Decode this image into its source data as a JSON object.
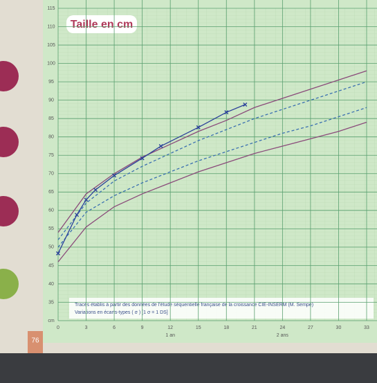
{
  "chart_data": {
    "type": "line",
    "title": "Taille en cm",
    "annotations": [
      "Tracés établis à partir des données de l'étude séquentielle française de la croissance CIE-INSERM (M. Sempé)",
      "Variations en écarts-types ( σ ) [1 σ = 1 DS]"
    ],
    "x_unit_labels": [
      {
        "value": 12,
        "label": "1 an"
      },
      {
        "value": 24,
        "label": "2 ans"
      }
    ],
    "page_number": "76",
    "x": [
      0,
      3,
      6,
      9,
      12,
      15,
      18,
      21,
      24,
      27,
      30,
      33
    ],
    "series": [
      {
        "color": "#8a4a7a",
        "dash": false,
        "values": [
          54,
          64.5,
          70,
          74.5,
          78,
          81.5,
          84.5,
          88,
          90.5,
          93,
          95.5,
          98
        ]
      },
      {
        "color": "#3a6fb0",
        "dash": true,
        "values": [
          52,
          62,
          68,
          72,
          75.5,
          79,
          82,
          85,
          87.5,
          90,
          92.5,
          95
        ]
      },
      {
        "color": "#3a6fb0",
        "dash": true,
        "values": [
          50,
          59.5,
          64,
          67.5,
          70.5,
          73.5,
          76,
          78.5,
          81,
          83,
          85.5,
          88
        ]
      },
      {
        "color": "#8a4a7a",
        "dash": false,
        "values": [
          46,
          55.5,
          61,
          64.5,
          67.5,
          70.5,
          73,
          75.5,
          77.5,
          79.5,
          81.5,
          84
        ]
      },
      {
        "color": "#2a3f9a",
        "dash": false,
        "markers": true,
        "x": [
          0,
          2,
          3,
          4,
          6,
          9,
          11,
          15,
          18,
          20
        ],
        "values": [
          48.3,
          58.8,
          62.9,
          65.6,
          69.5,
          74.2,
          77.5,
          82.6,
          86.7,
          88.8
        ]
      }
    ],
    "xlim": [
      0,
      33
    ],
    "xticks": [
      0,
      3,
      6,
      9,
      12,
      15,
      18,
      21,
      24,
      27,
      30,
      33
    ],
    "ylim": [
      30,
      115
    ],
    "yticks": [
      {
        "value": 30,
        "label": "cm"
      },
      35,
      40,
      45,
      50,
      55,
      60,
      65,
      70,
      75,
      80,
      85,
      90,
      95,
      100,
      105,
      110,
      115
    ],
    "grid": true
  }
}
